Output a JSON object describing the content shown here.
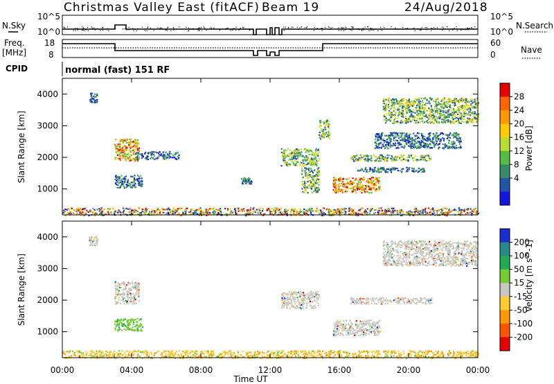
{
  "header": {
    "station": "Christmas Valley East (fitACF)",
    "beam": "Beam 19",
    "date": "24/Aug/2018"
  },
  "noise_panel": {
    "left_label": "N.Sky",
    "left_ticks": [
      "10^5",
      "10^0"
    ],
    "right_label": "N.Search",
    "right_ticks": [
      "10^5",
      "10^0"
    ]
  },
  "freq_panel": {
    "left_label_1": "Freq.",
    "left_label_2": "[MHz]",
    "left_ticks": [
      "18",
      "8"
    ],
    "right_label": "Nave",
    "right_ticks": [
      "60",
      "0"
    ]
  },
  "cpid": {
    "label": "CPID",
    "value": "normal (fast) 151 RF"
  },
  "axes": {
    "ylabel": "Slant Range [km]",
    "xlabel": "Time UT",
    "x_ticks": [
      "00:00",
      "04:00",
      "08:00",
      "12:00",
      "16:00",
      "20:00",
      "00:00"
    ],
    "y_ticks": [
      "4000",
      "3000",
      "2000",
      "1000"
    ]
  },
  "chart_data": [
    {
      "type": "heatmap",
      "name": "power",
      "title": "",
      "xlabel": "Time UT",
      "ylabel": "Slant Range [km]",
      "xlim_hours": [
        0,
        24
      ],
      "ylim_km": [
        180,
        4500
      ],
      "colorbar_label": "Power [dB]",
      "colorbar_ticks": [
        "28",
        "24",
        "20",
        "16",
        "12",
        "8",
        "4"
      ],
      "colorbar_colors": [
        "#e60000",
        "#ff6600",
        "#ff9900",
        "#ffcc00",
        "#bbdd33",
        "#55bb44",
        "#3a8a6a",
        "#2255aa",
        "#1515e0"
      ],
      "regions": [
        {
          "t": [
            1.5,
            2.0
          ],
          "r": [
            3750,
            4050
          ],
          "level": "low"
        },
        {
          "t": [
            3.0,
            4.4
          ],
          "r": [
            1900,
            2600
          ],
          "level": "high"
        },
        {
          "t": [
            4.2,
            6.7
          ],
          "r": [
            1950,
            2200
          ],
          "level": "low"
        },
        {
          "t": [
            3.0,
            4.6
          ],
          "r": [
            1050,
            1450
          ],
          "level": "low"
        },
        {
          "t": [
            10.3,
            10.9
          ],
          "r": [
            1180,
            1380
          ],
          "level": "low"
        },
        {
          "t": [
            12.6,
            14.8
          ],
          "r": [
            1750,
            2300
          ],
          "level": "mid"
        },
        {
          "t": [
            13.8,
            14.8
          ],
          "r": [
            900,
            1700
          ],
          "level": "mid"
        },
        {
          "t": [
            14.8,
            15.4
          ],
          "r": [
            2600,
            3200
          ],
          "level": "mid"
        },
        {
          "t": [
            15.6,
            18.3
          ],
          "r": [
            900,
            1400
          ],
          "level": "high"
        },
        {
          "t": [
            16.6,
            21.3
          ],
          "r": [
            1900,
            2100
          ],
          "level": "mid"
        },
        {
          "t": [
            17.0,
            21.0
          ],
          "r": [
            1550,
            1700
          ],
          "level": "low"
        },
        {
          "t": [
            18.0,
            23.0
          ],
          "r": [
            2300,
            2800
          ],
          "level": "low"
        },
        {
          "t": [
            18.5,
            24.0
          ],
          "r": [
            3100,
            3900
          ],
          "level": "mid"
        },
        {
          "t": [
            0.0,
            24.0
          ],
          "r": [
            180,
            420
          ],
          "level": "mixed"
        }
      ]
    },
    {
      "type": "heatmap",
      "name": "velocity",
      "title": "",
      "xlabel": "Time UT",
      "ylabel": "Slant Range [km]",
      "xlim_hours": [
        0,
        24
      ],
      "ylim_km": [
        180,
        4500
      ],
      "colorbar_label": "Velocity [m s^-1]",
      "colorbar_ticks": [
        "200",
        "100",
        "50",
        "15",
        "-15",
        "-50",
        "-100",
        "-200"
      ],
      "colorbar_colors": [
        "#1a2fd0",
        "#2a8a8a",
        "#22aa55",
        "#77cc33",
        "#c8c8c0",
        "#ffcc33",
        "#ff9900",
        "#ff5500",
        "#e60000"
      ],
      "regions": [
        {
          "t": [
            1.5,
            2.0
          ],
          "r": [
            3750,
            4050
          ],
          "level": "ground"
        },
        {
          "t": [
            3.0,
            4.4
          ],
          "r": [
            1900,
            2600
          ],
          "level": "ground"
        },
        {
          "t": [
            3.0,
            4.6
          ],
          "r": [
            1050,
            1450
          ],
          "level": "positive"
        },
        {
          "t": [
            12.6,
            14.8
          ],
          "r": [
            1750,
            2300
          ],
          "level": "ground"
        },
        {
          "t": [
            15.6,
            18.3
          ],
          "r": [
            900,
            1400
          ],
          "level": "ground"
        },
        {
          "t": [
            16.6,
            21.3
          ],
          "r": [
            1900,
            2100
          ],
          "level": "ground"
        },
        {
          "t": [
            18.5,
            24.0
          ],
          "r": [
            3100,
            3900
          ],
          "level": "ground"
        },
        {
          "t": [
            0.0,
            24.0
          ],
          "r": [
            180,
            420
          ],
          "level": "negative"
        }
      ]
    }
  ]
}
